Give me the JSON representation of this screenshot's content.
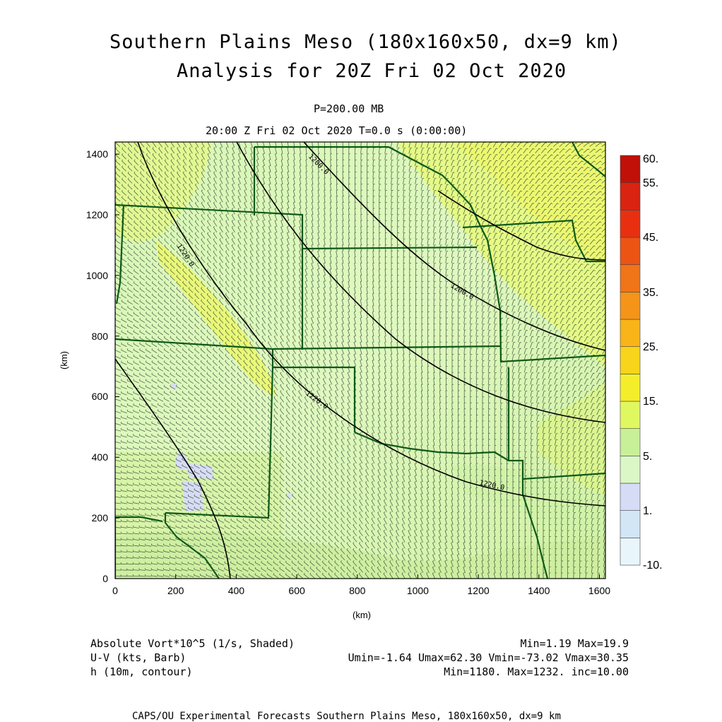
{
  "title_line1": "Southern Plains Meso (180x160x50, dx=9 km)",
  "title_line2": "Analysis for 20Z Fri 02 Oct 2020",
  "pressure_label": "P=200.00 MB",
  "time_label": "20:00 Z Fri 02 Oct 2020    T=0.0 s (0:00:00)",
  "axes": {
    "x_label": "(km)",
    "y_label": "(km)",
    "x_ticks": [
      "0",
      "200",
      "400",
      "600",
      "800",
      "1000",
      "1200",
      "1400",
      "1600"
    ],
    "y_ticks": [
      "0",
      "200",
      "400",
      "600",
      "800",
      "1000",
      "1200",
      "1400"
    ],
    "x_range": [
      0,
      1620
    ],
    "y_range": [
      0,
      1440
    ]
  },
  "colorbar": {
    "labels": [
      "60.",
      "55.",
      "45.",
      "35.",
      "25.",
      "15.",
      "5.",
      "1.",
      "-10."
    ],
    "colors": [
      "#e8f6fb",
      "#d2e6f6",
      "#d6dcf6",
      "#dcf7c6",
      "#c8f098",
      "#e0f860",
      "#f4ee2a",
      "#f8d41a",
      "#f8b418",
      "#f49418",
      "#f07418",
      "#ec5414",
      "#e83010",
      "#d82410",
      "#c01008"
    ]
  },
  "contours": [
    {
      "label": "1220.0"
    },
    {
      "label": "1220.0"
    },
    {
      "label": "1220.0"
    },
    {
      "label": "1200.0"
    },
    {
      "label": "1200.0"
    }
  ],
  "legend": {
    "row1_left": "Absolute Vort*10^5 (1/s, Shaded)",
    "row1_right": "Min=1.19 Max=19.9",
    "row2_left": "U-V (kts, Barb)",
    "row2_right": "Umin=-1.64 Umax=62.30 Vmin=-73.02 Vmax=30.35",
    "row3_left": "h (10m, contour)",
    "row3_right": "Min=1180. Max=1232. inc=10.00"
  },
  "credit": "CAPS/OU Experimental Forecasts  Southern Plains Meso, 180x160x50, dx=9 km",
  "colors": {
    "boundary": "#0d5a18",
    "contour": "#000000",
    "barb": "#2a3a2a"
  }
}
